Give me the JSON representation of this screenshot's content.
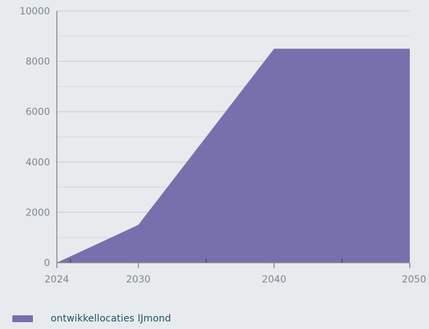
{
  "chart_data": {
    "type": "area",
    "x": [
      2024,
      2030,
      2040,
      2050
    ],
    "series": [
      {
        "name": "ontwikkellocaties IJmond",
        "values": [
          0,
          1500,
          8500,
          8500
        ]
      }
    ],
    "xlim": [
      2024,
      2050
    ],
    "ylim": [
      0,
      10000
    ],
    "x_ticks": [
      "2024",
      "2030",
      "2040",
      "2050"
    ],
    "y_ticks": [
      "0",
      "2000",
      "4000",
      "6000",
      "8000",
      "10000"
    ],
    "grid": "horizontal",
    "legend_position": "bottom-left",
    "colors": {
      "area": "#7671ad",
      "grid_major": "#c5c9cd",
      "grid_minor": "#d4d8db",
      "axis": "#7f858c",
      "tick_text": "#7f858c",
      "legend_text": "#1f5264",
      "background": "#e7ebed"
    }
  }
}
